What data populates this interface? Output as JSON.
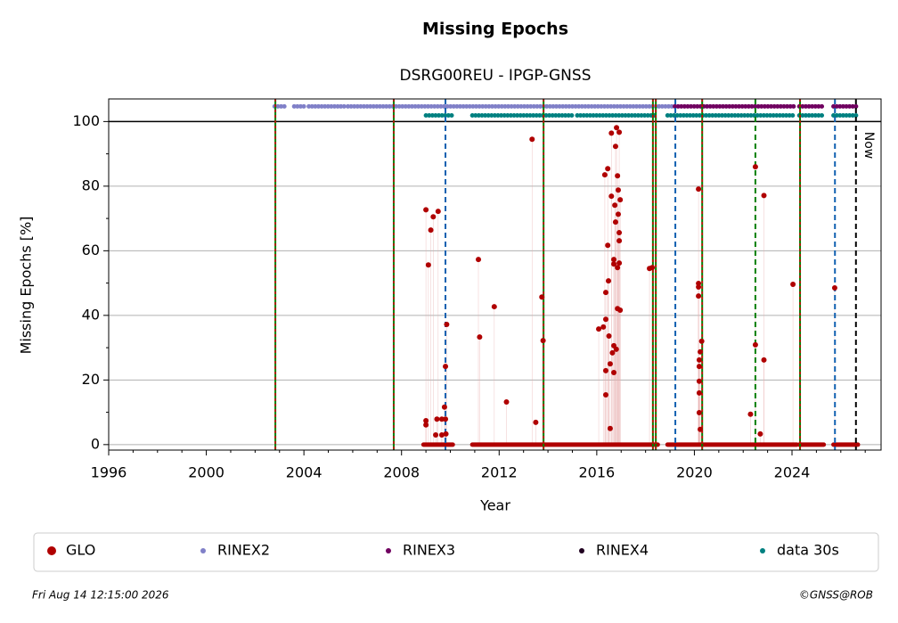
{
  "chart_data": {
    "type": "scatter",
    "title": "Missing Epochs",
    "subtitle": "DSRG00REU - IPGP-GNSS",
    "xlabel": "Year",
    "ylabel": "Missing Epochs [%]",
    "xlim": [
      1996,
      2027.65
    ],
    "ylim": [
      -1.7,
      107
    ],
    "xticks": [
      1996,
      2000,
      2004,
      2008,
      2012,
      2016,
      2020,
      2024
    ],
    "xminorticks": [
      1997,
      1998,
      1999,
      2001,
      2002,
      2003,
      2005,
      2006,
      2007,
      2009,
      2010,
      2011,
      2013,
      2014,
      2015,
      2017,
      2018,
      2019,
      2021,
      2022,
      2023,
      2025,
      2026,
      2027
    ],
    "yticks": [
      0,
      20,
      40,
      60,
      80,
      100
    ],
    "yminorticks": [
      10,
      30,
      50,
      70,
      90
    ],
    "grid": true,
    "reference_line": 100,
    "events": [
      {
        "x": 2002.83,
        "style": "red-green"
      },
      {
        "x": 2007.68,
        "style": "red-green"
      },
      {
        "x": 2009.8,
        "style": "blue"
      },
      {
        "x": 2013.82,
        "style": "red-green"
      },
      {
        "x": 2018.3,
        "style": "red-green"
      },
      {
        "x": 2018.42,
        "style": "red-green"
      },
      {
        "x": 2019.22,
        "style": "blue"
      },
      {
        "x": 2020.32,
        "style": "red-green"
      },
      {
        "x": 2022.5,
        "style": "green"
      },
      {
        "x": 2024.33,
        "style": "red-green"
      },
      {
        "x": 2025.76,
        "style": "blue"
      },
      {
        "x": 2026.62,
        "style": "black",
        "label": "Now"
      }
    ],
    "series": [
      {
        "name": "GLO",
        "color": "#b00000",
        "x": [
          2009.0,
          2009.1,
          2009.2,
          2009.3,
          2009.5,
          2009.85,
          2009.8,
          2009.76,
          2009.0,
          2009.0,
          2009.45,
          2009.65,
          2009.8,
          2009.4,
          2009.65,
          2009.82,
          2011.15,
          2011.2,
          2011.8,
          2012.3,
          2013.35,
          2013.5,
          2013.75,
          2013.8,
          2016.08,
          2016.27,
          2016.33,
          2016.37,
          2016.37,
          2016.45,
          2016.45,
          2016.48,
          2016.5,
          2016.37,
          2016.37,
          2016.55,
          2016.55,
          2016.6,
          2016.6,
          2016.64,
          2016.7,
          2016.7,
          2016.7,
          2016.7,
          2016.74,
          2016.77,
          2016.77,
          2016.81,
          2016.85,
          2016.85,
          2016.88,
          2016.88,
          2016.92,
          2016.92,
          2016.92,
          2016.96,
          2016.92,
          2016.96,
          2016.85,
          2016.8,
          2018.16,
          2018.27,
          2020.17,
          2020.17,
          2020.17,
          2020.17,
          2020.24,
          2020.2,
          2020.2,
          2020.2,
          2020.2,
          2020.2,
          2020.24,
          2020.3,
          2022.3,
          2022.5,
          2022.5,
          2022.7,
          2022.85,
          2022.85,
          2024.04,
          2025.75
        ],
        "values": [
          72.7,
          55.6,
          66.4,
          70.5,
          72.2,
          37.2,
          24.2,
          11.6,
          7.4,
          6.1,
          7.9,
          7.9,
          7.9,
          3.0,
          3.0,
          3.3,
          57.3,
          33.3,
          42.7,
          13.2,
          94.5,
          6.9,
          45.7,
          32.2,
          35.8,
          36.4,
          83.5,
          47.1,
          38.8,
          85.4,
          61.7,
          50.7,
          33.6,
          15.4,
          22.9,
          25.0,
          5.0,
          96.4,
          76.9,
          28.4,
          57.3,
          55.9,
          30.6,
          22.3,
          74.1,
          92.3,
          68.9,
          98.1,
          54.8,
          42.1,
          78.8,
          71.3,
          96.7,
          65.6,
          63.1,
          75.8,
          56.2,
          41.6,
          83.2,
          29.5,
          54.5,
          54.8,
          79.1,
          49.9,
          48.8,
          46.0,
          28.7,
          26.2,
          24.2,
          19.6,
          16.0,
          9.9,
          4.7,
          32.0,
          9.4,
          86.0,
          30.9,
          3.3,
          77.1,
          26.2,
          49.6,
          48.5
        ],
        "zero_segments": [
          [
            2008.9,
            2010.1
          ],
          [
            2010.9,
            2018.5
          ],
          [
            2018.9,
            2024.2
          ],
          [
            2024.3,
            2025.3
          ],
          [
            2025.7,
            2026.7
          ]
        ]
      },
      {
        "name": "RINEX2",
        "color": "#8080c8",
        "level": 104.7,
        "segments": [
          [
            2002.8,
            2003.2
          ],
          [
            2003.6,
            2004.0
          ],
          [
            2004.2,
            2005.7
          ],
          [
            2005.8,
            2019.2
          ]
        ]
      },
      {
        "name": "RINEX3",
        "color": "#700060",
        "level": 104.7,
        "segments": [
          [
            2019.2,
            2024.15
          ],
          [
            2024.3,
            2025.3
          ],
          [
            2025.7,
            2026.7
          ]
        ]
      },
      {
        "name": "RINEX4",
        "color": "#200020",
        "level": 104.7,
        "segments": []
      },
      {
        "name": "data 30s",
        "color": "#008080",
        "level": 101.9,
        "segments": [
          [
            2009.0,
            2010.1
          ],
          [
            2010.9,
            2015.1
          ],
          [
            2015.2,
            2018.4
          ],
          [
            2018.9,
            2024.15
          ],
          [
            2024.3,
            2025.3
          ],
          [
            2025.7,
            2026.7
          ]
        ]
      }
    ],
    "timestamp": "Fri Aug 14 12:15:00 2026",
    "credit": "©GNSS@ROB"
  }
}
